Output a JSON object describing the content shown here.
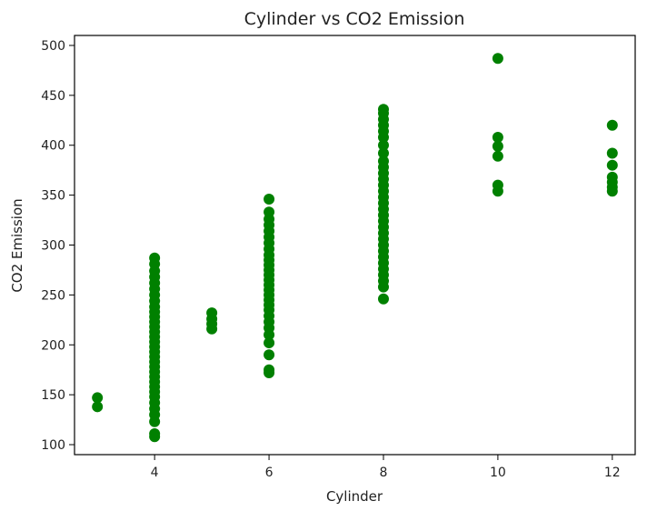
{
  "chart_data": {
    "type": "scatter",
    "title": "Cylinder vs CO2 Emission",
    "xlabel": "Cylinder",
    "ylabel": "CO2 Emission",
    "xlim": [
      2.6,
      12.4
    ],
    "ylim": [
      90,
      510
    ],
    "xticks": [
      4,
      6,
      8,
      10,
      12
    ],
    "yticks": [
      100,
      150,
      200,
      250,
      300,
      350,
      400,
      450,
      500
    ],
    "grid": false,
    "color": "#008000",
    "points": [
      {
        "x": 3,
        "y": 138
      },
      {
        "x": 3,
        "y": 147
      },
      {
        "x": 4,
        "y": 108
      },
      {
        "x": 4,
        "y": 111
      },
      {
        "x": 4,
        "y": 123
      },
      {
        "x": 4,
        "y": 130
      },
      {
        "x": 4,
        "y": 136
      },
      {
        "x": 4,
        "y": 142
      },
      {
        "x": 4,
        "y": 148
      },
      {
        "x": 4,
        "y": 153
      },
      {
        "x": 4,
        "y": 158
      },
      {
        "x": 4,
        "y": 163
      },
      {
        "x": 4,
        "y": 168
      },
      {
        "x": 4,
        "y": 173
      },
      {
        "x": 4,
        "y": 178
      },
      {
        "x": 4,
        "y": 183
      },
      {
        "x": 4,
        "y": 188
      },
      {
        "x": 4,
        "y": 193
      },
      {
        "x": 4,
        "y": 198
      },
      {
        "x": 4,
        "y": 203
      },
      {
        "x": 4,
        "y": 208
      },
      {
        "x": 4,
        "y": 213
      },
      {
        "x": 4,
        "y": 218
      },
      {
        "x": 4,
        "y": 223
      },
      {
        "x": 4,
        "y": 228
      },
      {
        "x": 4,
        "y": 233
      },
      {
        "x": 4,
        "y": 238
      },
      {
        "x": 4,
        "y": 244
      },
      {
        "x": 4,
        "y": 250
      },
      {
        "x": 4,
        "y": 256
      },
      {
        "x": 4,
        "y": 262
      },
      {
        "x": 4,
        "y": 268
      },
      {
        "x": 4,
        "y": 274
      },
      {
        "x": 4,
        "y": 281
      },
      {
        "x": 4,
        "y": 287
      },
      {
        "x": 5,
        "y": 216
      },
      {
        "x": 5,
        "y": 221
      },
      {
        "x": 5,
        "y": 226
      },
      {
        "x": 5,
        "y": 232
      },
      {
        "x": 6,
        "y": 172
      },
      {
        "x": 6,
        "y": 175
      },
      {
        "x": 6,
        "y": 190
      },
      {
        "x": 6,
        "y": 202
      },
      {
        "x": 6,
        "y": 210
      },
      {
        "x": 6,
        "y": 217
      },
      {
        "x": 6,
        "y": 223
      },
      {
        "x": 6,
        "y": 229
      },
      {
        "x": 6,
        "y": 235
      },
      {
        "x": 6,
        "y": 240
      },
      {
        "x": 6,
        "y": 245
      },
      {
        "x": 6,
        "y": 250
      },
      {
        "x": 6,
        "y": 255
      },
      {
        "x": 6,
        "y": 260
      },
      {
        "x": 6,
        "y": 265
      },
      {
        "x": 6,
        "y": 270
      },
      {
        "x": 6,
        "y": 275
      },
      {
        "x": 6,
        "y": 280
      },
      {
        "x": 6,
        "y": 285
      },
      {
        "x": 6,
        "y": 290
      },
      {
        "x": 6,
        "y": 296
      },
      {
        "x": 6,
        "y": 302
      },
      {
        "x": 6,
        "y": 308
      },
      {
        "x": 6,
        "y": 314
      },
      {
        "x": 6,
        "y": 320
      },
      {
        "x": 6,
        "y": 326
      },
      {
        "x": 6,
        "y": 333
      },
      {
        "x": 6,
        "y": 346
      },
      {
        "x": 8,
        "y": 246
      },
      {
        "x": 8,
        "y": 258
      },
      {
        "x": 8,
        "y": 264
      },
      {
        "x": 8,
        "y": 270
      },
      {
        "x": 8,
        "y": 276
      },
      {
        "x": 8,
        "y": 282
      },
      {
        "x": 8,
        "y": 288
      },
      {
        "x": 8,
        "y": 294
      },
      {
        "x": 8,
        "y": 300
      },
      {
        "x": 8,
        "y": 306
      },
      {
        "x": 8,
        "y": 312
      },
      {
        "x": 8,
        "y": 318
      },
      {
        "x": 8,
        "y": 324
      },
      {
        "x": 8,
        "y": 330
      },
      {
        "x": 8,
        "y": 336
      },
      {
        "x": 8,
        "y": 342
      },
      {
        "x": 8,
        "y": 348
      },
      {
        "x": 8,
        "y": 354
      },
      {
        "x": 8,
        "y": 360
      },
      {
        "x": 8,
        "y": 366
      },
      {
        "x": 8,
        "y": 372
      },
      {
        "x": 8,
        "y": 378
      },
      {
        "x": 8,
        "y": 384
      },
      {
        "x": 8,
        "y": 392
      },
      {
        "x": 8,
        "y": 400
      },
      {
        "x": 8,
        "y": 408
      },
      {
        "x": 8,
        "y": 414
      },
      {
        "x": 8,
        "y": 420
      },
      {
        "x": 8,
        "y": 426
      },
      {
        "x": 8,
        "y": 432
      },
      {
        "x": 8,
        "y": 436
      },
      {
        "x": 10,
        "y": 354
      },
      {
        "x": 10,
        "y": 360
      },
      {
        "x": 10,
        "y": 389
      },
      {
        "x": 10,
        "y": 399
      },
      {
        "x": 10,
        "y": 408
      },
      {
        "x": 10,
        "y": 487
      },
      {
        "x": 12,
        "y": 354
      },
      {
        "x": 12,
        "y": 358
      },
      {
        "x": 12,
        "y": 363
      },
      {
        "x": 12,
        "y": 368
      },
      {
        "x": 12,
        "y": 380
      },
      {
        "x": 12,
        "y": 392
      },
      {
        "x": 12,
        "y": 420
      }
    ]
  }
}
